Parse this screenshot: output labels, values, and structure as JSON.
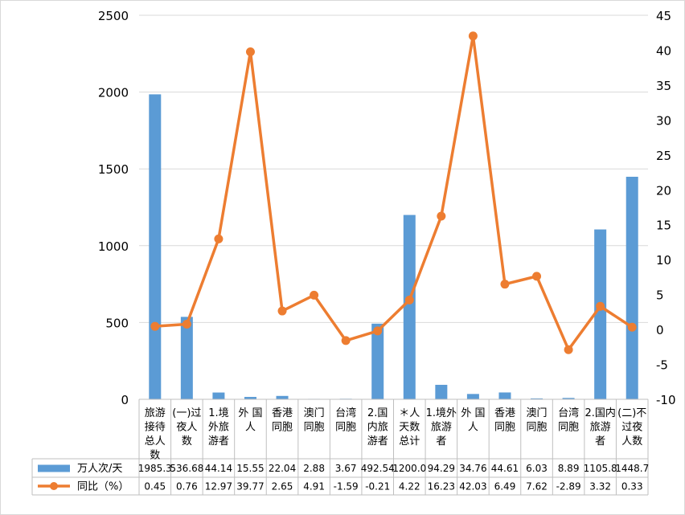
{
  "chart_data": {
    "type": "bar+line",
    "categories": [
      [
        "旅游",
        "接待",
        "总人",
        "数"
      ],
      [
        "(一)过",
        "夜人",
        "数"
      ],
      [
        "1.境",
        "外旅",
        "游者"
      ],
      [
        "外 国",
        "人"
      ],
      [
        "香港",
        "同胞"
      ],
      [
        "澳门",
        "同胞"
      ],
      [
        "台湾",
        "同胞"
      ],
      [
        "2.国",
        "内旅",
        "游者"
      ],
      [
        "＊人",
        "天数",
        "总计"
      ],
      [
        "1.境外",
        "旅游",
        "者"
      ],
      [
        "外 国",
        "人"
      ],
      [
        "香港",
        "同胞"
      ],
      [
        "澳门",
        "同胞"
      ],
      [
        "台湾",
        "同胞"
      ],
      [
        "2.国内",
        "旅游",
        "者"
      ],
      [
        "(二)不",
        "过夜",
        "人数"
      ]
    ],
    "series": [
      {
        "name": "万人次/天",
        "type": "bar",
        "axis": "left",
        "color": "#5B9BD5",
        "values": [
          1985.3,
          536.68,
          44.14,
          15.55,
          22.04,
          2.88,
          3.67,
          492.54,
          1200.0,
          94.29,
          34.76,
          44.61,
          6.03,
          8.89,
          1105.8,
          1448.7
        ],
        "labels": [
          "1985.3",
          "536.68",
          "44.14",
          "15.55",
          "22.04",
          "2.88",
          "3.67",
          "492.54",
          "1200.0",
          "94.29",
          "34.76",
          "44.61",
          "6.03",
          "8.89",
          "1105.8",
          "1448.7"
        ]
      },
      {
        "name": "同比（%）",
        "type": "line",
        "axis": "right",
        "color": "#ED7D31",
        "values": [
          0.45,
          0.76,
          12.97,
          39.77,
          2.65,
          4.91,
          -1.59,
          -0.21,
          4.22,
          16.23,
          42.03,
          6.49,
          7.62,
          -2.89,
          3.32,
          0.33
        ],
        "labels": [
          "0.45",
          "0.76",
          "12.97",
          "39.77",
          "2.65",
          "4.91",
          "-1.59",
          "-0.21",
          "4.22",
          "16.23",
          "42.03",
          "6.49",
          "7.62",
          "-2.89",
          "3.32",
          "0.33"
        ]
      }
    ],
    "y_left": {
      "min": 0,
      "max": 2500,
      "ticks": [
        0,
        500,
        1000,
        1500,
        2000,
        2500
      ]
    },
    "y_right": {
      "min": -10,
      "max": 45,
      "ticks": [
        -10,
        -5,
        0,
        5,
        10,
        15,
        20,
        25,
        30,
        35,
        40,
        45
      ]
    },
    "grid": true,
    "data_table": true
  }
}
